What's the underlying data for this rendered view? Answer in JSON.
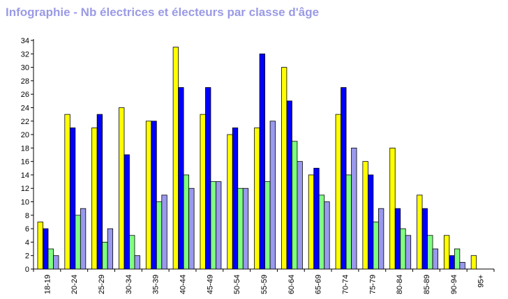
{
  "title": "Infographie - Nb électrices et électeurs par classe d'âge",
  "chart_data": {
    "type": "bar",
    "title": "Infographie - Nb électrices et électeurs par classe d'âge",
    "xlabel": "",
    "ylabel": "",
    "ylim": [
      0,
      34
    ],
    "yticks": [
      0,
      2,
      4,
      6,
      8,
      10,
      12,
      14,
      16,
      18,
      20,
      22,
      24,
      26,
      28,
      30,
      32,
      34
    ],
    "grid": false,
    "categories": [
      "18-19",
      "20-24",
      "25-29",
      "30-34",
      "35-39",
      "40-44",
      "45-49",
      "50-54",
      "55-59",
      "60-64",
      "65-69",
      "70-74",
      "75-79",
      "80-84",
      "85-89",
      "90-94",
      "95+"
    ],
    "series": [
      {
        "color": "#ffff00",
        "values": [
          7,
          23,
          21,
          24,
          22,
          33,
          23,
          20,
          21,
          30,
          14,
          23,
          16,
          18,
          11,
          5,
          2
        ]
      },
      {
        "color": "#0000ff",
        "values": [
          6,
          21,
          23,
          17,
          22,
          27,
          27,
          21,
          32,
          25,
          15,
          27,
          14,
          9,
          9,
          2,
          0
        ]
      },
      {
        "color": "#80ff80",
        "values": [
          3,
          8,
          4,
          5,
          10,
          14,
          13,
          12,
          13,
          19,
          11,
          14,
          7,
          6,
          5,
          3,
          0
        ]
      },
      {
        "color": "#9999ee",
        "values": [
          2,
          9,
          6,
          2,
          11,
          12,
          13,
          12,
          22,
          16,
          10,
          18,
          9,
          5,
          3,
          1,
          0
        ]
      }
    ]
  }
}
